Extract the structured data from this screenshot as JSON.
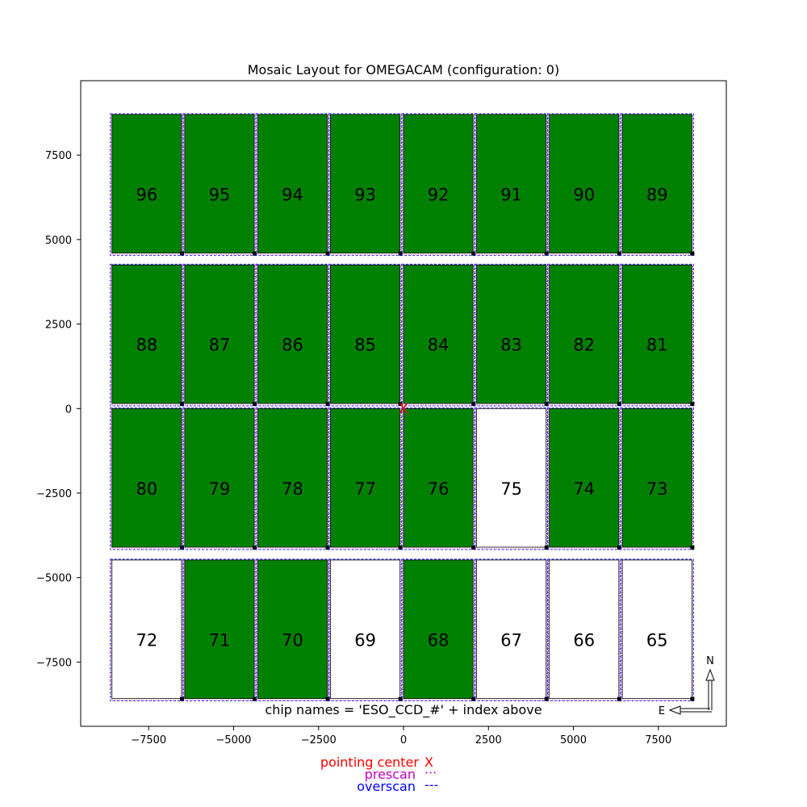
{
  "chart_data": {
    "type": "mosaic-layout",
    "title": "Mosaic Layout for OMEGACAM (configuration: 0)",
    "xlim": [
      -9500,
      9500
    ],
    "ylim": [
      -9400,
      9700
    ],
    "x_ticks": [
      {
        "value": -7500,
        "label": "−7500"
      },
      {
        "value": -5000,
        "label": "−5000"
      },
      {
        "value": -2500,
        "label": "−2500"
      },
      {
        "value": 0,
        "label": "0"
      },
      {
        "value": 2500,
        "label": "2500"
      },
      {
        "value": 5000,
        "label": "5000"
      },
      {
        "value": 7500,
        "label": "7500"
      }
    ],
    "y_ticks": [
      {
        "value": 7500,
        "label": "7500"
      },
      {
        "value": 5000,
        "label": "5000"
      },
      {
        "value": 2500,
        "label": "2500"
      },
      {
        "value": 0,
        "label": "0"
      },
      {
        "value": -2500,
        "label": "−2500"
      },
      {
        "value": -5000,
        "label": "−5000"
      },
      {
        "value": -7500,
        "label": "−7500"
      }
    ],
    "grid": false,
    "chip_width": 2048,
    "chip_height": 4100,
    "columns_left": [
      -8580,
      -6440,
      -4290,
      -2150,
      0,
      2150,
      4290,
      6440
    ],
    "rows_bottom": [
      4600,
      150,
      -4100,
      -8580
    ],
    "chips": [
      {
        "index": "96",
        "row": 0,
        "col": 0,
        "active": true
      },
      {
        "index": "95",
        "row": 0,
        "col": 1,
        "active": true
      },
      {
        "index": "94",
        "row": 0,
        "col": 2,
        "active": true
      },
      {
        "index": "93",
        "row": 0,
        "col": 3,
        "active": true
      },
      {
        "index": "92",
        "row": 0,
        "col": 4,
        "active": true
      },
      {
        "index": "91",
        "row": 0,
        "col": 5,
        "active": true
      },
      {
        "index": "90",
        "row": 0,
        "col": 6,
        "active": true
      },
      {
        "index": "89",
        "row": 0,
        "col": 7,
        "active": true
      },
      {
        "index": "88",
        "row": 1,
        "col": 0,
        "active": true
      },
      {
        "index": "87",
        "row": 1,
        "col": 1,
        "active": true
      },
      {
        "index": "86",
        "row": 1,
        "col": 2,
        "active": true
      },
      {
        "index": "85",
        "row": 1,
        "col": 3,
        "active": true
      },
      {
        "index": "84",
        "row": 1,
        "col": 4,
        "active": true
      },
      {
        "index": "83",
        "row": 1,
        "col": 5,
        "active": true
      },
      {
        "index": "82",
        "row": 1,
        "col": 6,
        "active": true
      },
      {
        "index": "81",
        "row": 1,
        "col": 7,
        "active": true
      },
      {
        "index": "80",
        "row": 2,
        "col": 0,
        "active": true
      },
      {
        "index": "79",
        "row": 2,
        "col": 1,
        "active": true
      },
      {
        "index": "78",
        "row": 2,
        "col": 2,
        "active": true
      },
      {
        "index": "77",
        "row": 2,
        "col": 3,
        "active": true
      },
      {
        "index": "76",
        "row": 2,
        "col": 4,
        "active": true
      },
      {
        "index": "75",
        "row": 2,
        "col": 5,
        "active": false
      },
      {
        "index": "74",
        "row": 2,
        "col": 6,
        "active": true
      },
      {
        "index": "73",
        "row": 2,
        "col": 7,
        "active": true
      },
      {
        "index": "72",
        "row": 3,
        "col": 0,
        "active": false
      },
      {
        "index": "71",
        "row": 3,
        "col": 1,
        "active": true
      },
      {
        "index": "70",
        "row": 3,
        "col": 2,
        "active": true
      },
      {
        "index": "69",
        "row": 3,
        "col": 3,
        "active": false
      },
      {
        "index": "68",
        "row": 3,
        "col": 4,
        "active": true
      },
      {
        "index": "67",
        "row": 3,
        "col": 5,
        "active": false
      },
      {
        "index": "66",
        "row": 3,
        "col": 6,
        "active": false
      },
      {
        "index": "65",
        "row": 3,
        "col": 7,
        "active": false
      }
    ],
    "pointing_center": [
      0,
      0
    ],
    "chip_names_note": "chip names = 'ESO_CCD_#' + index above",
    "compass": {
      "north": "N",
      "east": "E"
    },
    "legend": [
      {
        "label": "pointing center",
        "symbol": "X",
        "color": "#ff0000"
      },
      {
        "label": "prescan",
        "symbol": "···",
        "color": "#bf00bf"
      },
      {
        "label": "overscan",
        "symbol": "---",
        "color": "#0000ff"
      }
    ],
    "colors": {
      "active_fill": "#008000",
      "inactive_fill": "#ffffff",
      "chip_edge": "#000000",
      "prescan": "#bf00bf",
      "overscan": "#0000ff",
      "pointing_center": "#ff0000"
    }
  }
}
